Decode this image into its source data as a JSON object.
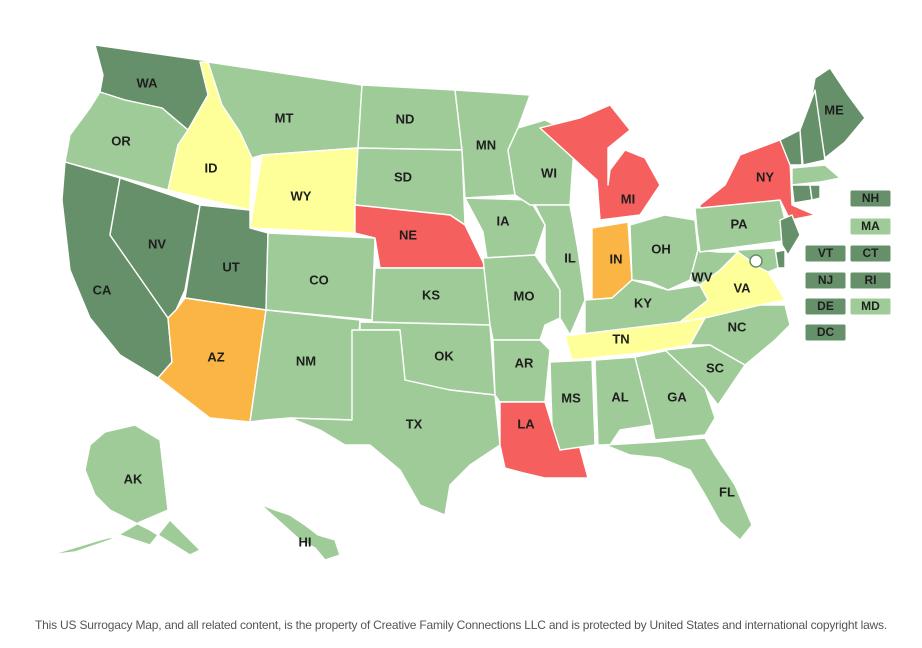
{
  "colors": {
    "dark_green": "#66906a",
    "light_green": "#9fcb98",
    "yellow": "#ffff99",
    "orange": "#fbb545",
    "red": "#f5605e"
  },
  "states": [
    {
      "code": "WA",
      "label": "WA",
      "status": "dark_green"
    },
    {
      "code": "OR",
      "label": "OR",
      "status": "light_green"
    },
    {
      "code": "CA",
      "label": "CA",
      "status": "dark_green"
    },
    {
      "code": "NV",
      "label": "NV",
      "status": "dark_green"
    },
    {
      "code": "ID",
      "label": "ID",
      "status": "yellow"
    },
    {
      "code": "MT",
      "label": "MT",
      "status": "light_green"
    },
    {
      "code": "WY",
      "label": "WY",
      "status": "yellow"
    },
    {
      "code": "UT",
      "label": "UT",
      "status": "dark_green"
    },
    {
      "code": "AZ",
      "label": "AZ",
      "status": "orange"
    },
    {
      "code": "CO",
      "label": "CO",
      "status": "light_green"
    },
    {
      "code": "NM",
      "label": "NM",
      "status": "light_green"
    },
    {
      "code": "ND",
      "label": "ND",
      "status": "light_green"
    },
    {
      "code": "SD",
      "label": "SD",
      "status": "light_green"
    },
    {
      "code": "NE",
      "label": "NE",
      "status": "red"
    },
    {
      "code": "KS",
      "label": "KS",
      "status": "light_green"
    },
    {
      "code": "OK",
      "label": "OK",
      "status": "light_green"
    },
    {
      "code": "TX",
      "label": "TX",
      "status": "light_green"
    },
    {
      "code": "MN",
      "label": "MN",
      "status": "light_green"
    },
    {
      "code": "IA",
      "label": "IA",
      "status": "light_green"
    },
    {
      "code": "MO",
      "label": "MO",
      "status": "light_green"
    },
    {
      "code": "AR",
      "label": "AR",
      "status": "light_green"
    },
    {
      "code": "LA",
      "label": "LA",
      "status": "red"
    },
    {
      "code": "WI",
      "label": "WI",
      "status": "light_green"
    },
    {
      "code": "IL",
      "label": "IL",
      "status": "light_green"
    },
    {
      "code": "MI",
      "label": "MI",
      "status": "red"
    },
    {
      "code": "IN",
      "label": "IN",
      "status": "orange"
    },
    {
      "code": "OH",
      "label": "OH",
      "status": "light_green"
    },
    {
      "code": "KY",
      "label": "KY",
      "status": "light_green"
    },
    {
      "code": "TN",
      "label": "TN",
      "status": "yellow"
    },
    {
      "code": "MS",
      "label": "MS",
      "status": "light_green"
    },
    {
      "code": "AL",
      "label": "AL",
      "status": "light_green"
    },
    {
      "code": "GA",
      "label": "GA",
      "status": "light_green"
    },
    {
      "code": "FL",
      "label": "FL",
      "status": "light_green"
    },
    {
      "code": "SC",
      "label": "SC",
      "status": "light_green"
    },
    {
      "code": "NC",
      "label": "NC",
      "status": "light_green"
    },
    {
      "code": "VA",
      "label": "VA",
      "status": "yellow"
    },
    {
      "code": "WV",
      "label": "WV",
      "status": "light_green"
    },
    {
      "code": "PA",
      "label": "PA",
      "status": "light_green"
    },
    {
      "code": "NY",
      "label": "NY",
      "status": "red"
    },
    {
      "code": "ME",
      "label": "ME",
      "status": "dark_green"
    },
    {
      "code": "VT",
      "label": "",
      "status": "dark_green"
    },
    {
      "code": "NH",
      "label": "",
      "status": "dark_green"
    },
    {
      "code": "MA",
      "label": "",
      "status": "light_green"
    },
    {
      "code": "CT",
      "label": "",
      "status": "dark_green"
    },
    {
      "code": "RI",
      "label": "",
      "status": "dark_green"
    },
    {
      "code": "NJ",
      "label": "",
      "status": "dark_green"
    },
    {
      "code": "DE",
      "label": "",
      "status": "dark_green"
    },
    {
      "code": "MD",
      "label": "",
      "status": "light_green"
    },
    {
      "code": "AK",
      "label": "AK",
      "status": "light_green"
    },
    {
      "code": "HI",
      "label": "HI",
      "status": "light_green"
    }
  ],
  "small_states": [
    {
      "code": "NH",
      "label": "NH",
      "status": "dark_green"
    },
    {
      "code": "MA",
      "label": "MA",
      "status": "light_green"
    },
    {
      "code": "VT",
      "label": "VT",
      "status": "dark_green"
    },
    {
      "code": "CT",
      "label": "CT",
      "status": "dark_green"
    },
    {
      "code": "NJ",
      "label": "NJ",
      "status": "dark_green"
    },
    {
      "code": "RI",
      "label": "RI",
      "status": "dark_green"
    },
    {
      "code": "DE",
      "label": "DE",
      "status": "dark_green"
    },
    {
      "code": "MD",
      "label": "MD",
      "status": "light_green"
    },
    {
      "code": "DC",
      "label": "DC",
      "status": "dark_green"
    }
  ],
  "copyright": "This US Surrogacy Map, and all related content, is the property of Creative Family Connections LLC and is protected by United States and international copyright laws."
}
